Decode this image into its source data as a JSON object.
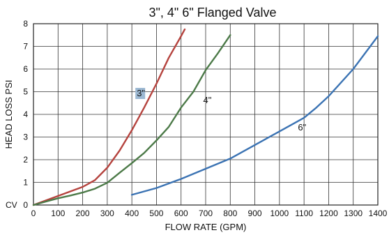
{
  "chart_data": {
    "type": "line",
    "title": "3\", 4\" 6\" Flanged Valve",
    "xlabel": "FLOW RATE (GPM)",
    "ylabel": "HEAD  LOSS PSI",
    "cv_label": "CV",
    "xlim": [
      0,
      1400
    ],
    "ylim": [
      0,
      8
    ],
    "xticks": [
      0,
      100,
      200,
      300,
      400,
      500,
      600,
      700,
      800,
      900,
      1000,
      1100,
      1200,
      1300,
      1400
    ],
    "yticks": [
      0,
      1,
      2,
      3,
      4,
      5,
      6,
      7,
      8
    ],
    "grid": true,
    "legend": "none",
    "series": [
      {
        "name": "3\"",
        "color": "#b5433e",
        "label_at": [
          420,
          4.8
        ],
        "label_highlight": "#9db9d3",
        "x": [
          0,
          50,
          100,
          150,
          200,
          250,
          300,
          350,
          400,
          450,
          500,
          550,
          600,
          615
        ],
        "y": [
          0,
          0.2,
          0.4,
          0.6,
          0.8,
          1.1,
          1.65,
          2.4,
          3.3,
          4.3,
          5.35,
          6.5,
          7.45,
          7.75
        ]
      },
      {
        "name": "4\"",
        "color": "#4c7a48",
        "label_at": [
          690,
          4.5
        ],
        "x": [
          0,
          50,
          100,
          150,
          200,
          250,
          300,
          350,
          400,
          450,
          500,
          550,
          600,
          650,
          700,
          750,
          800
        ],
        "y": [
          0,
          0.15,
          0.3,
          0.42,
          0.55,
          0.72,
          0.98,
          1.42,
          1.85,
          2.3,
          2.85,
          3.45,
          4.3,
          5.0,
          5.95,
          6.7,
          7.5
        ]
      },
      {
        "name": "6\"",
        "color": "#3b73b3",
        "label_at": [
          1075,
          3.3
        ],
        "x": [
          400,
          500,
          600,
          700,
          800,
          900,
          1000,
          1100,
          1150,
          1200,
          1300,
          1400
        ],
        "y": [
          0.45,
          0.75,
          1.15,
          1.6,
          2.05,
          2.65,
          3.25,
          3.85,
          4.3,
          4.8,
          6.0,
          7.45
        ]
      }
    ]
  }
}
